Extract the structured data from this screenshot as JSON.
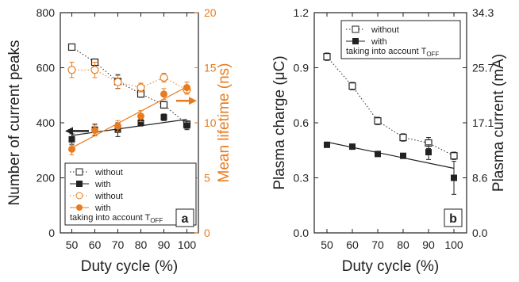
{
  "chart_data": [
    {
      "panel": "a",
      "type": "scatter",
      "x": [
        50,
        60,
        70,
        80,
        90,
        100
      ],
      "xlabel": "Duty cycle (%)",
      "xlim": [
        45,
        105
      ],
      "x_ticks": [
        "50",
        "60",
        "70",
        "80",
        "90",
        "100"
      ],
      "ylabel_left": "Number of current peaks",
      "ylim_left": [
        0,
        800
      ],
      "y_ticks_left": [
        "0",
        "200",
        "400",
        "600",
        "800"
      ],
      "ylabel_right": "Mean lifetime (ns)",
      "ylim_right": [
        0,
        20
      ],
      "y_ticks_right": [
        "0",
        "5",
        "10",
        "15",
        "20"
      ],
      "series": [
        {
          "name": "without",
          "axis": "left",
          "marker": "open-square",
          "line": "dotted",
          "color": "#222222",
          "values": [
            675,
            620,
            550,
            505,
            465,
            395
          ],
          "err": [
            10,
            12,
            25,
            12,
            12,
            12
          ]
        },
        {
          "name": "with",
          "axis": "left",
          "marker": "filled-square",
          "line": "solid",
          "color": "#222222",
          "values": [
            340,
            375,
            375,
            400,
            420,
            390
          ],
          "err": [
            20,
            20,
            25,
            12,
            12,
            15
          ]
        },
        {
          "name": "without",
          "axis": "right",
          "marker": "open-circle",
          "line": "dotted",
          "color": "#e87b1e",
          "values": [
            14.8,
            14.8,
            13.7,
            13.2,
            14.1,
            13.0
          ],
          "err": [
            0.7,
            0.7,
            0.6,
            0.4,
            0.4,
            0.4
          ]
        },
        {
          "name": "with",
          "axis": "right",
          "marker": "filled-circle",
          "line": "solid",
          "color": "#e87b1e",
          "values": [
            7.6,
            9.3,
            9.7,
            10.6,
            12.6,
            13.2
          ],
          "err": [
            0.5,
            0.5,
            0.5,
            0.5,
            0.5,
            0.5
          ]
        }
      ],
      "legend_note": "taking into account T",
      "legend_note_sub": "OFF",
      "panel_label": "a",
      "legend_position": "bottom-left",
      "grid": false,
      "colors": {
        "orange": "#e87b1e",
        "black": "#222222"
      }
    },
    {
      "panel": "b",
      "type": "scatter",
      "x": [
        50,
        60,
        70,
        80,
        90,
        100
      ],
      "xlabel": "Duty cycle (%)",
      "xlim": [
        45,
        105
      ],
      "x_ticks": [
        "50",
        "60",
        "70",
        "80",
        "90",
        "100"
      ],
      "ylabel_left": "Plasma charge (μC)",
      "ylim_left": [
        0,
        1.2
      ],
      "y_ticks_left": [
        "0.0",
        "0.3",
        "0.6",
        "0.9",
        "1.2"
      ],
      "ylabel_right": "Plasma current (mA)",
      "y_ticks_right": [
        "0.0",
        "8.6",
        "17.1",
        "25.7",
        "34.3"
      ],
      "series": [
        {
          "name": "without",
          "marker": "open-square",
          "line": "dotted",
          "color": "#222222",
          "values": [
            0.96,
            0.8,
            0.61,
            0.52,
            0.49,
            0.42
          ],
          "err": [
            0.02,
            0.02,
            0.02,
            0.02,
            0.03,
            0.02
          ]
        },
        {
          "name": "with",
          "marker": "filled-square",
          "line": "solid",
          "color": "#222222",
          "values": [
            0.48,
            0.47,
            0.43,
            0.42,
            0.44,
            0.3
          ],
          "err": [
            0.01,
            0.01,
            0.01,
            0.01,
            0.04,
            0.09
          ]
        }
      ],
      "legend_note": "taking into account T",
      "legend_note_sub": "OFF",
      "panel_label": "b",
      "legend_position": "top-right",
      "grid": false
    }
  ]
}
